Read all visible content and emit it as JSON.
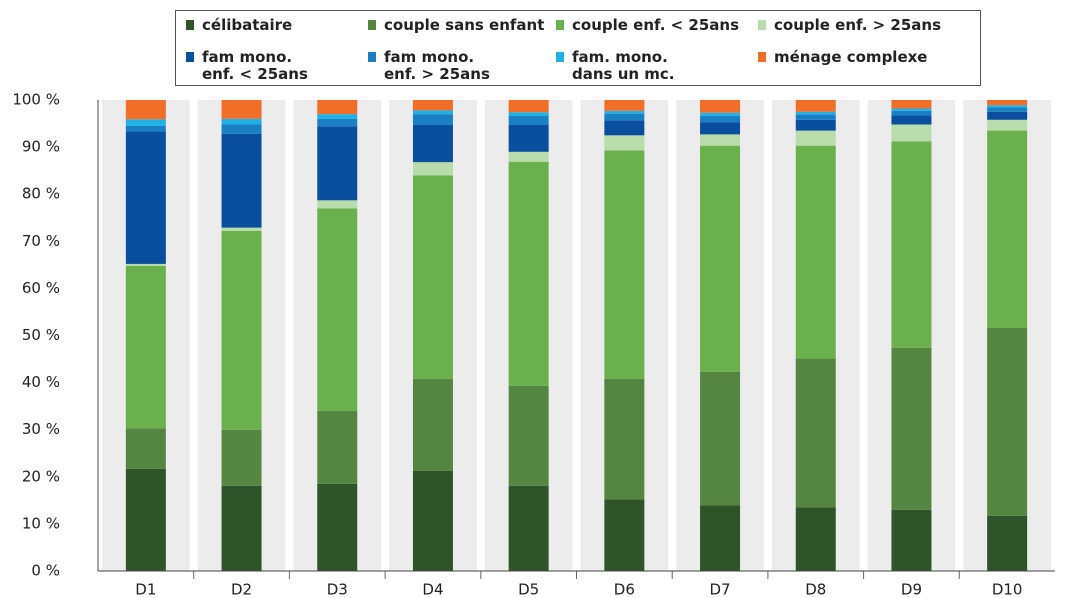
{
  "chart_data": {
    "type": "stacked_bar",
    "categories": [
      "D1",
      "D2",
      "D3",
      "D4",
      "D5",
      "D6",
      "D7",
      "D8",
      "D9",
      "D10"
    ],
    "series": [
      {
        "name": "célibataire",
        "color": "#2f5429",
        "values": [
          21.7,
          18.1,
          18.5,
          21.3,
          18.1,
          15.2,
          13.9,
          13.5,
          13.0,
          11.7
        ]
      },
      {
        "name": "couple sans enfant",
        "color": "#548541",
        "values": [
          8.6,
          11.9,
          15.5,
          19.5,
          21.2,
          25.6,
          28.4,
          31.6,
          34.4,
          39.9
        ]
      },
      {
        "name": "couple enf. < 25ans",
        "color": "#6ab04c",
        "values": [
          34.5,
          42.2,
          43.0,
          43.2,
          47.6,
          48.5,
          48.0,
          45.2,
          43.8,
          41.9
        ]
      },
      {
        "name": "couple enf. > 25ans",
        "color": "#b8dcaa",
        "values": [
          0.4,
          0.7,
          1.7,
          2.8,
          2.1,
          3.2,
          2.4,
          3.2,
          3.6,
          2.3
        ]
      },
      {
        "name": "fam mono.\nenf. < 25ans",
        "color": "#0a4f9e",
        "values": [
          28.1,
          19.9,
          15.7,
          7.9,
          5.7,
          3.2,
          2.6,
          2.3,
          1.9,
          1.7
        ]
      },
      {
        "name": "fam mono.\nenf. > 25ans",
        "color": "#1b7fc4",
        "values": [
          1.2,
          2.0,
          1.6,
          2.3,
          1.9,
          1.4,
          1.3,
          1.1,
          1.0,
          0.9
        ]
      },
      {
        "name": "fam. mono.\ndans un mc.",
        "color": "#1eb1e6",
        "values": [
          1.4,
          1.2,
          1.0,
          0.8,
          0.8,
          0.6,
          0.7,
          0.6,
          0.5,
          0.5
        ]
      },
      {
        "name": "ménage complexe",
        "color": "#f06e28",
        "values": [
          4.1,
          4.0,
          3.0,
          2.2,
          2.6,
          2.3,
          2.7,
          2.5,
          1.8,
          1.1
        ]
      }
    ],
    "ylim": [
      0,
      100
    ],
    "yticks": [
      {
        "value": 0,
        "label": "0 %"
      },
      {
        "value": 10,
        "label": "10 %"
      },
      {
        "value": 20,
        "label": "20 %"
      },
      {
        "value": 30,
        "label": "30 %"
      },
      {
        "value": 40,
        "label": "40 %"
      },
      {
        "value": 50,
        "label": "50 %"
      },
      {
        "value": 60,
        "label": "60 %"
      },
      {
        "value": 70,
        "label": "70 %"
      },
      {
        "value": 80,
        "label": "80 %"
      },
      {
        "value": 90,
        "label": "90 %"
      },
      {
        "value": 100,
        "label": "100 %"
      }
    ]
  }
}
